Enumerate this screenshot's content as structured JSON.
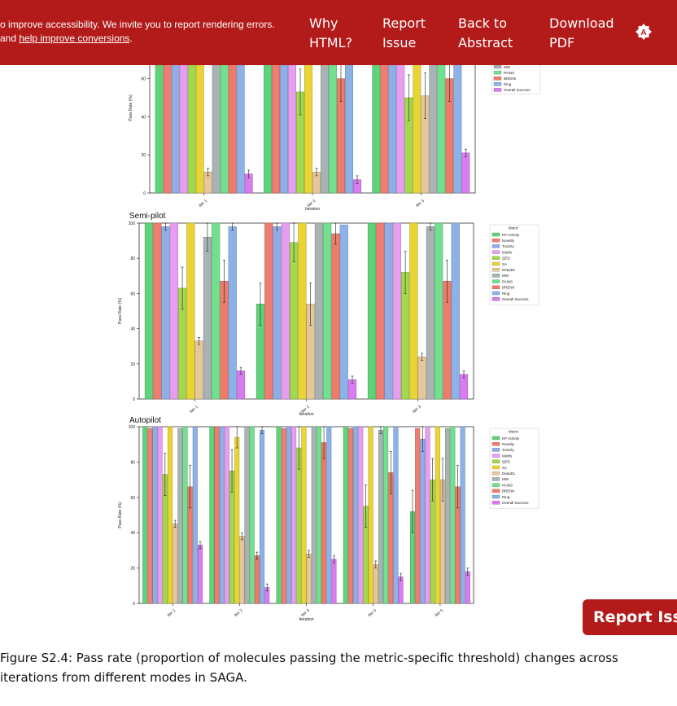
{
  "banner": {
    "message_line1": "o improve accessibility. We invite you to report rendering errors.",
    "message_line2_prefix": "and ",
    "message_link": "help improve conversions",
    "message_line2_suffix": ".",
    "nav": [
      {
        "line1": "Why",
        "line2": "HTML?"
      },
      {
        "line1": "Report",
        "line2": "Issue"
      },
      {
        "line1": "Back to",
        "line2": "Abstract"
      },
      {
        "line1": "Download",
        "line2": "PDF"
      }
    ],
    "theme_icon": "theme-toggle-icon",
    "theme_letter": "A"
  },
  "floating_report_label": "Report Issue",
  "caption": "Figure S2.4: Pass rate (proportion of molecules passing the metric-specific threshold) changes across iterations from different modes in SAGA.",
  "colors": {
    "brand": "#b31b1b",
    "KP Activity": "#5fd37a",
    "Novelty": "#f07e70",
    "Toxicity": "#8faee6",
    "Motifs": "#e79ef0",
    "QED": "#a3d94f",
    "SA": "#e9d436",
    "DeepDL": "#e6c79a",
    "MW": "#a9b3b3",
    "PAINS": "#72e08e",
    "BRENK": "#ef7b6b",
    "Ring": "#8cb2e8",
    "Overall Success": "#d87cf0"
  },
  "chart_data": [
    {
      "type": "bar",
      "title": "",
      "xlabel": "Iteration",
      "ylabel": "Pass Rate (%)",
      "ylim": [
        0,
        100
      ],
      "yticks": [
        0,
        20,
        40,
        60
      ],
      "categories": [
        "Iter 1",
        "Iter 2",
        "Iter 3"
      ],
      "legend_title": "",
      "legend_position": "right",
      "legend": [
        "MW",
        "PAINS",
        "BRENK",
        "Ring",
        "Overall Success"
      ],
      "series": [
        {
          "name": "KP Activity",
          "values": [
            100,
            100,
            100
          ]
        },
        {
          "name": "Novelty",
          "values": [
            100,
            100,
            100
          ]
        },
        {
          "name": "Toxicity",
          "values": [
            100,
            100,
            100
          ]
        },
        {
          "name": "Motifs",
          "values": [
            100,
            100,
            100
          ]
        },
        {
          "name": "QED",
          "values": [
            100,
            53,
            50
          ]
        },
        {
          "name": "SA",
          "values": [
            100,
            100,
            100
          ]
        },
        {
          "name": "DeepDL",
          "values": [
            11,
            11,
            51
          ]
        },
        {
          "name": "MW",
          "values": [
            100,
            100,
            100
          ]
        },
        {
          "name": "PAINS",
          "values": [
            100,
            100,
            100
          ]
        },
        {
          "name": "BRENK",
          "values": [
            100,
            60,
            60
          ]
        },
        {
          "name": "Ring",
          "values": [
            100,
            100,
            100
          ]
        },
        {
          "name": "Overall Success",
          "values": [
            10,
            7,
            21
          ]
        }
      ]
    },
    {
      "type": "bar",
      "title": "Semi-pilot",
      "xlabel": "Iteration",
      "ylabel": "Pass Rate (%)",
      "ylim": [
        0,
        100
      ],
      "yticks": [
        0,
        20,
        40,
        60,
        80,
        100
      ],
      "categories": [
        "Iter 1",
        "Iter 2",
        "Iter 3"
      ],
      "legend_title": "Metric",
      "legend_position": "right",
      "legend": [
        "KP Activity",
        "Novelty",
        "Toxicity",
        "Motifs",
        "QED",
        "SA",
        "DeepDL",
        "MW",
        "PAINS",
        "BRENK",
        "Ring",
        "Overall Success"
      ],
      "series": [
        {
          "name": "KP Activity",
          "values": [
            100,
            54,
            100
          ]
        },
        {
          "name": "Novelty",
          "values": [
            100,
            100,
            100
          ]
        },
        {
          "name": "Toxicity",
          "values": [
            98,
            98,
            100
          ]
        },
        {
          "name": "Motifs",
          "values": [
            100,
            100,
            100
          ]
        },
        {
          "name": "QED",
          "values": [
            63,
            89,
            72
          ]
        },
        {
          "name": "SA",
          "values": [
            100,
            100,
            100
          ]
        },
        {
          "name": "DeepDL",
          "values": [
            33,
            54,
            24
          ]
        },
        {
          "name": "MW",
          "values": [
            92,
            100,
            98
          ]
        },
        {
          "name": "PAINS",
          "values": [
            100,
            100,
            100
          ]
        },
        {
          "name": "BRENK",
          "values": [
            67,
            94,
            67
          ]
        },
        {
          "name": "Ring",
          "values": [
            98,
            99,
            100
          ]
        },
        {
          "name": "Overall Success",
          "values": [
            16,
            11,
            14
          ]
        }
      ]
    },
    {
      "type": "bar",
      "title": "Autopilot",
      "xlabel": "Iteration",
      "ylabel": "Pass Rate (%)",
      "ylim": [
        0,
        100
      ],
      "yticks": [
        0,
        20,
        40,
        60,
        80,
        100
      ],
      "categories": [
        "Iter 1",
        "Iter 2",
        "Iter 3",
        "Iter 4",
        "Iter 5"
      ],
      "legend_title": "Metric",
      "legend_position": "right",
      "legend": [
        "KP Activity",
        "Novelty",
        "Toxicity",
        "Motifs",
        "QED",
        "SA",
        "DeepDL",
        "MW",
        "PAINS",
        "BRENK",
        "Ring",
        "Overall Success"
      ],
      "series": [
        {
          "name": "KP Activity",
          "values": [
            100,
            100,
            100,
            100,
            52
          ]
        },
        {
          "name": "Novelty",
          "values": [
            99,
            100,
            99,
            99,
            99
          ]
        },
        {
          "name": "Toxicity",
          "values": [
            100,
            100,
            100,
            100,
            93
          ]
        },
        {
          "name": "Motifs",
          "values": [
            100,
            100,
            100,
            100,
            100
          ]
        },
        {
          "name": "QED",
          "values": [
            73,
            75,
            88,
            55,
            70
          ]
        },
        {
          "name": "SA",
          "values": [
            100,
            94,
            100,
            100,
            100
          ]
        },
        {
          "name": "DeepDL",
          "values": [
            45,
            38,
            28,
            22,
            70
          ]
        },
        {
          "name": "MW",
          "values": [
            99,
            100,
            100,
            98,
            99
          ]
        },
        {
          "name": "PAINS",
          "values": [
            100,
            100,
            100,
            100,
            100
          ]
        },
        {
          "name": "BRENK",
          "values": [
            66,
            27,
            91,
            74,
            66
          ]
        },
        {
          "name": "Ring",
          "values": [
            100,
            98,
            100,
            100,
            100
          ]
        },
        {
          "name": "Overall Success",
          "values": [
            33,
            9,
            25,
            15,
            18
          ]
        }
      ]
    }
  ]
}
